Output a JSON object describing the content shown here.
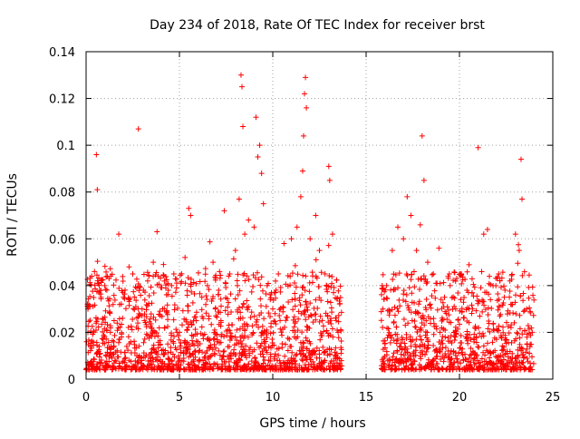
{
  "chart_data": {
    "type": "scatter",
    "title": "Day 234 of 2018, Rate Of TEC Index for receiver brst",
    "xlabel": "GPS time / hours",
    "ylabel": "ROTI / TECUs",
    "xlim": [
      0,
      25
    ],
    "ylim": [
      0,
      0.14
    ],
    "x_ticks": [
      0,
      5,
      10,
      15,
      20,
      25
    ],
    "x_tick_labels": [
      "0",
      "5",
      "10",
      "15",
      "20",
      "25"
    ],
    "y_ticks": [
      0,
      0.02,
      0.04,
      0.06,
      0.08,
      0.1,
      0.12,
      0.14
    ],
    "y_tick_labels": [
      "0",
      "0.02",
      "0.04",
      "0.06",
      "0.08",
      "0.1",
      "0.12",
      "0.14"
    ],
    "grid": true,
    "marker": "+",
    "color": "#ff0000",
    "data_gap_hours": [
      13.7,
      15.8
    ],
    "series": [
      {
        "name": "ROTI",
        "points": [
          [
            0.1,
            0.03
          ],
          [
            0.3,
            0.044
          ],
          [
            0.45,
            0.046
          ],
          [
            0.55,
            0.096
          ],
          [
            0.6,
            0.081
          ],
          [
            0.8,
            0.035
          ],
          [
            1.0,
            0.04
          ],
          [
            1.3,
            0.02
          ],
          [
            1.5,
            0.025
          ],
          [
            1.75,
            0.062
          ],
          [
            2.0,
            0.035
          ],
          [
            2.3,
            0.048
          ],
          [
            2.5,
            0.045
          ],
          [
            2.8,
            0.107
          ],
          [
            3.0,
            0.03
          ],
          [
            3.3,
            0.042
          ],
          [
            3.6,
            0.05
          ],
          [
            3.8,
            0.063
          ],
          [
            4.1,
            0.03
          ],
          [
            4.4,
            0.038
          ],
          [
            4.7,
            0.045
          ],
          [
            5.0,
            0.02
          ],
          [
            5.3,
            0.052
          ],
          [
            5.5,
            0.073
          ],
          [
            5.6,
            0.07
          ],
          [
            5.9,
            0.025
          ],
          [
            6.2,
            0.035
          ],
          [
            6.5,
            0.04
          ],
          [
            6.8,
            0.05
          ],
          [
            7.1,
            0.038
          ],
          [
            7.4,
            0.072
          ],
          [
            7.7,
            0.045
          ],
          [
            8.0,
            0.055
          ],
          [
            8.2,
            0.077
          ],
          [
            8.3,
            0.13
          ],
          [
            8.35,
            0.125
          ],
          [
            8.4,
            0.108
          ],
          [
            8.5,
            0.062
          ],
          [
            8.7,
            0.068
          ],
          [
            9.0,
            0.065
          ],
          [
            9.1,
            0.112
          ],
          [
            9.2,
            0.095
          ],
          [
            9.3,
            0.1
          ],
          [
            9.4,
            0.088
          ],
          [
            9.5,
            0.075
          ],
          [
            9.7,
            0.04
          ],
          [
            10.0,
            0.03
          ],
          [
            10.3,
            0.045
          ],
          [
            10.6,
            0.058
          ],
          [
            11.0,
            0.06
          ],
          [
            11.3,
            0.065
          ],
          [
            11.5,
            0.078
          ],
          [
            11.6,
            0.089
          ],
          [
            11.65,
            0.104
          ],
          [
            11.7,
            0.122
          ],
          [
            11.75,
            0.129
          ],
          [
            11.8,
            0.116
          ],
          [
            12.0,
            0.06
          ],
          [
            12.3,
            0.07
          ],
          [
            12.5,
            0.055
          ],
          [
            12.8,
            0.045
          ],
          [
            13.0,
            0.091
          ],
          [
            13.05,
            0.085
          ],
          [
            13.2,
            0.062
          ],
          [
            13.5,
            0.02
          ],
          [
            15.9,
            0.03
          ],
          [
            16.1,
            0.04
          ],
          [
            16.4,
            0.055
          ],
          [
            16.7,
            0.065
          ],
          [
            17.0,
            0.06
          ],
          [
            17.2,
            0.078
          ],
          [
            17.4,
            0.07
          ],
          [
            17.7,
            0.055
          ],
          [
            17.9,
            0.066
          ],
          [
            18.0,
            0.104
          ],
          [
            18.1,
            0.085
          ],
          [
            18.3,
            0.05
          ],
          [
            18.6,
            0.045
          ],
          [
            18.9,
            0.056
          ],
          [
            19.2,
            0.035
          ],
          [
            19.5,
            0.04
          ],
          [
            19.8,
            0.03
          ],
          [
            20.1,
            0.045
          ],
          [
            20.4,
            0.038
          ],
          [
            20.7,
            0.03
          ],
          [
            21.0,
            0.099
          ],
          [
            21.3,
            0.062
          ],
          [
            21.5,
            0.064
          ],
          [
            21.8,
            0.04
          ],
          [
            22.1,
            0.045
          ],
          [
            22.4,
            0.035
          ],
          [
            22.7,
            0.042
          ],
          [
            23.0,
            0.062
          ],
          [
            23.2,
            0.055
          ],
          [
            23.3,
            0.094
          ],
          [
            23.35,
            0.077
          ],
          [
            23.6,
            0.03
          ],
          [
            23.9,
            0.02
          ]
        ]
      }
    ]
  }
}
